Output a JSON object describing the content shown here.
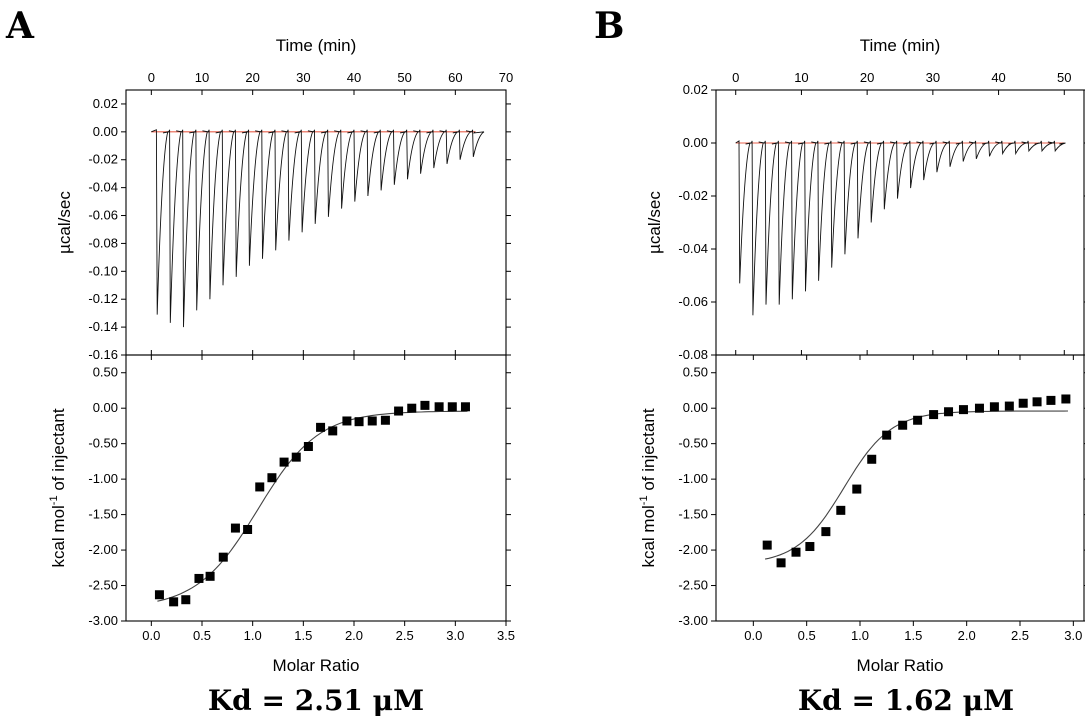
{
  "figure": {
    "panels": [
      {
        "label": "A",
        "kd_text": "Kd = 2.51 μM"
      },
      {
        "label": "B",
        "kd_text": "Kd = 1.62 μM"
      }
    ]
  },
  "chart_data": [
    {
      "panel": "A",
      "type": "line",
      "subplot": "raw-thermogram",
      "xlabel": "Time (min)",
      "ylabel": "µcal/sec",
      "xlim": [
        -5,
        70
      ],
      "ylim": [
        -0.16,
        0.03
      ],
      "xticks": [
        "0",
        "10",
        "20",
        "30",
        "40",
        "50",
        "60",
        "70"
      ],
      "yticks": [
        "0.02",
        "0.00",
        "-0.02",
        "-0.04",
        "-0.06",
        "-0.08",
        "-0.10",
        "-0.12",
        "-0.14",
        "-0.16"
      ],
      "trace": {
        "start": 0.0,
        "end": 64.0
      },
      "injection_times": [
        1.0,
        3.6,
        6.2,
        8.8,
        11.4,
        14.0,
        16.6,
        19.2,
        21.8,
        24.4,
        27.0,
        29.6,
        32.2,
        34.8,
        37.4,
        40.0,
        42.6,
        45.2,
        47.8,
        50.4,
        53.0,
        55.6,
        58.2,
        60.8,
        63.4
      ],
      "peak_values": [
        -0.131,
        -0.137,
        -0.14,
        -0.128,
        -0.12,
        -0.11,
        -0.104,
        -0.096,
        -0.091,
        -0.085,
        -0.078,
        -0.072,
        -0.066,
        -0.061,
        -0.055,
        -0.05,
        -0.046,
        -0.042,
        -0.038,
        -0.034,
        -0.03,
        -0.026,
        -0.023,
        -0.02,
        -0.018
      ],
      "baseline": 0.0
    },
    {
      "panel": "A",
      "type": "scatter",
      "subplot": "integrated-heats",
      "xlabel": "Molar Ratio",
      "ylabel": "kcal mol-1 of injectant",
      "ylabel_parts": {
        "pre": "kcal mol",
        "sup": "-1",
        "post": " of injectant"
      },
      "xlim": [
        -0.25,
        3.5
      ],
      "ylim": [
        -3.0,
        0.75
      ],
      "xticks": [
        "0.0",
        "0.5",
        "1.0",
        "1.5",
        "2.0",
        "2.5",
        "3.0",
        "3.5"
      ],
      "yticks": [
        "0.50",
        "0.00",
        "-0.50",
        "-1.00",
        "-1.50",
        "-2.00",
        "-2.50",
        "-3.00"
      ],
      "points": {
        "x": [
          0.08,
          0.22,
          0.34,
          0.47,
          0.58,
          0.71,
          0.83,
          0.95,
          1.07,
          1.19,
          1.31,
          1.43,
          1.55,
          1.67,
          1.79,
          1.93,
          2.05,
          2.18,
          2.31,
          2.44,
          2.57,
          2.7,
          2.84,
          2.97,
          3.1
        ],
        "y": [
          -2.63,
          -2.73,
          -2.7,
          -2.4,
          -2.37,
          -2.1,
          -1.69,
          -1.71,
          -1.11,
          -0.98,
          -0.76,
          -0.69,
          -0.54,
          -0.27,
          -0.32,
          -0.18,
          -0.19,
          -0.18,
          -0.17,
          -0.04,
          0.0,
          0.04,
          0.02,
          0.02,
          0.02
        ]
      },
      "fit": {
        "type": "sigmoid",
        "bottom": -2.82,
        "top": -0.04,
        "midpoint": 1.05,
        "width": 0.3
      }
    },
    {
      "panel": "B",
      "type": "line",
      "subplot": "raw-thermogram",
      "xlabel": "Time (min)",
      "ylabel": "µcal/sec",
      "xlim": [
        -3,
        53
      ],
      "ylim": [
        -0.08,
        0.02
      ],
      "xticks": [
        "0",
        "10",
        "20",
        "30",
        "40",
        "50"
      ],
      "yticks": [
        "0.02",
        "0.00",
        "-0.02",
        "-0.04",
        "-0.06",
        "-0.08"
      ],
      "trace": {
        "start": 0.0,
        "end": 50.0
      },
      "injection_times": [
        0.5,
        2.5,
        4.5,
        6.5,
        8.5,
        10.5,
        12.5,
        14.5,
        16.5,
        18.5,
        20.5,
        22.5,
        24.5,
        26.5,
        28.5,
        30.5,
        32.5,
        34.5,
        36.5,
        38.5,
        40.5,
        42.5,
        44.5,
        46.5,
        48.5
      ],
      "peak_values": [
        -0.053,
        -0.065,
        -0.061,
        -0.061,
        -0.059,
        -0.056,
        -0.052,
        -0.047,
        -0.042,
        -0.036,
        -0.03,
        -0.025,
        -0.021,
        -0.017,
        -0.014,
        -0.011,
        -0.009,
        -0.007,
        -0.006,
        -0.005,
        -0.004,
        -0.004,
        -0.003,
        -0.003,
        -0.003
      ],
      "baseline": 0.0
    },
    {
      "panel": "B",
      "type": "scatter",
      "subplot": "integrated-heats",
      "xlabel": "Molar Ratio",
      "ylabel": "kcal mol-1 of injectant",
      "ylabel_parts": {
        "pre": "kcal mol",
        "sup": "-1",
        "post": " of injectant"
      },
      "xlim": [
        -0.35,
        3.1
      ],
      "ylim": [
        -3.0,
        0.75
      ],
      "xticks": [
        "0.0",
        "0.5",
        "1.0",
        "1.5",
        "2.0",
        "2.5",
        "3.0"
      ],
      "yticks": [
        "0.50",
        "0.00",
        "-0.50",
        "-1.00",
        "-1.50",
        "-2.00",
        "-2.50",
        "-3.00"
      ],
      "points": {
        "x": [
          0.13,
          0.26,
          0.4,
          0.53,
          0.68,
          0.82,
          0.97,
          1.11,
          1.25,
          1.4,
          1.54,
          1.69,
          1.83,
          1.97,
          2.12,
          2.26,
          2.4,
          2.53,
          2.66,
          2.79,
          2.93
        ],
        "y": [
          -1.93,
          -2.18,
          -2.03,
          -1.95,
          -1.74,
          -1.44,
          -1.14,
          -0.72,
          -0.38,
          -0.24,
          -0.17,
          -0.09,
          -0.05,
          -0.02,
          0.0,
          0.02,
          0.03,
          0.07,
          0.09,
          0.11,
          0.13
        ]
      },
      "fit": {
        "type": "sigmoid",
        "bottom": -2.2,
        "top": -0.04,
        "midpoint": 0.85,
        "width": 0.22
      }
    }
  ]
}
